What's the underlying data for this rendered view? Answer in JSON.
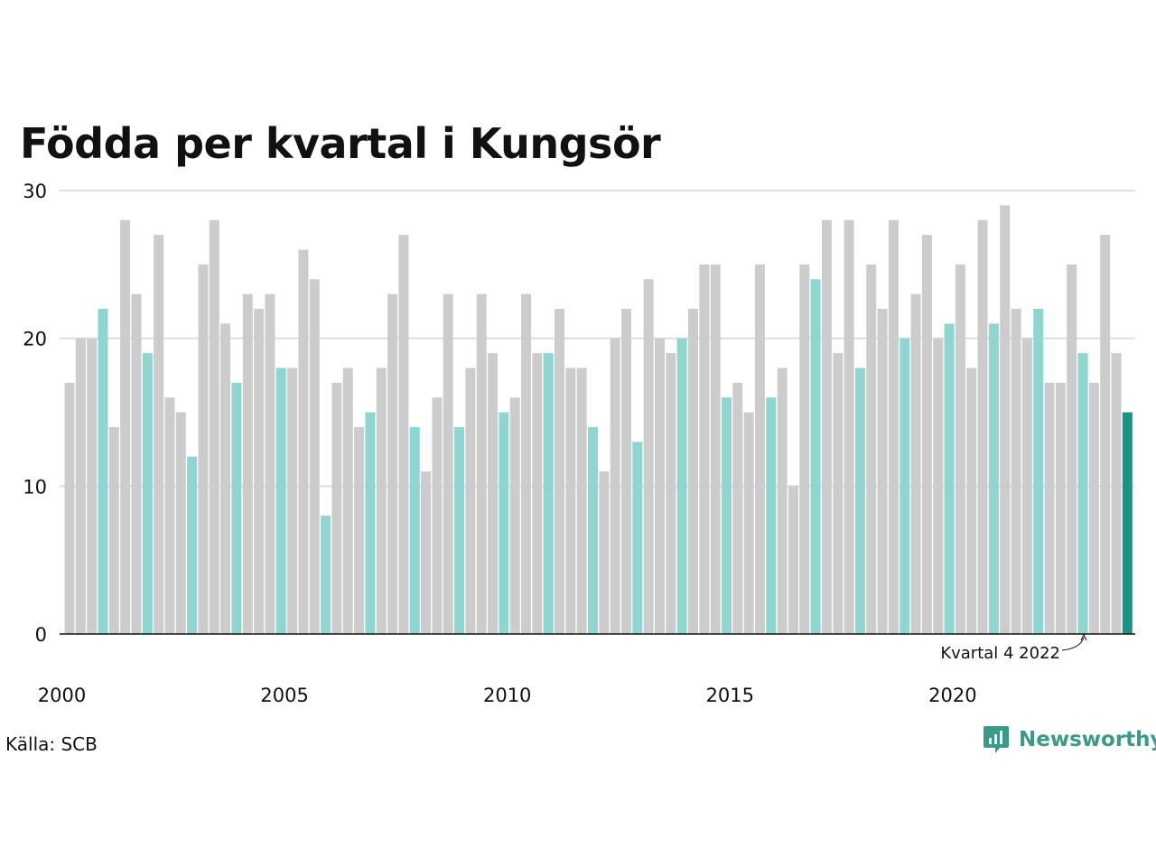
{
  "title": "Födda per kvartal i Kungsör",
  "source": "Källa: SCB",
  "brand": "Newsworthy",
  "colors": {
    "default_bar": "#cccccc",
    "q4_bar": "#8ed6cf",
    "latest_bar": "#1a9585",
    "grid": "#dddddd",
    "axis": "#111111",
    "brand": "#3a9a86"
  },
  "chart_data": {
    "type": "bar",
    "title": "Födda per kvartal i Kungsör",
    "start_year": 2000,
    "values": [
      17,
      20,
      20,
      22,
      14,
      28,
      23,
      19,
      27,
      16,
      15,
      12,
      25,
      28,
      21,
      17,
      23,
      22,
      23,
      18,
      18,
      26,
      24,
      8,
      17,
      18,
      14,
      15,
      18,
      23,
      27,
      14,
      11,
      16,
      23,
      14,
      18,
      23,
      19,
      15,
      16,
      23,
      19,
      19,
      22,
      18,
      18,
      14,
      11,
      20,
      22,
      13,
      24,
      20,
      19,
      20,
      22,
      25,
      25,
      16,
      17,
      15,
      25,
      16,
      18,
      10,
      25,
      24,
      28,
      19,
      28,
      18,
      25,
      22,
      28,
      20,
      23,
      27,
      20,
      21,
      25,
      18,
      28,
      21,
      29,
      22,
      20,
      22,
      17,
      17,
      25,
      19,
      17,
      27,
      19,
      15
    ],
    "highlight_rule": "fourth quarter of each year highlighted; latest quarter in darker teal",
    "ylim": [
      0,
      30
    ],
    "yticks": [
      0,
      10,
      20,
      30
    ],
    "xticks": [
      "2000",
      "2005",
      "2010",
      "2015",
      "2020"
    ],
    "xlabel": "",
    "ylabel": "",
    "grid": true,
    "annotation": "Kvartal 4 2022"
  }
}
